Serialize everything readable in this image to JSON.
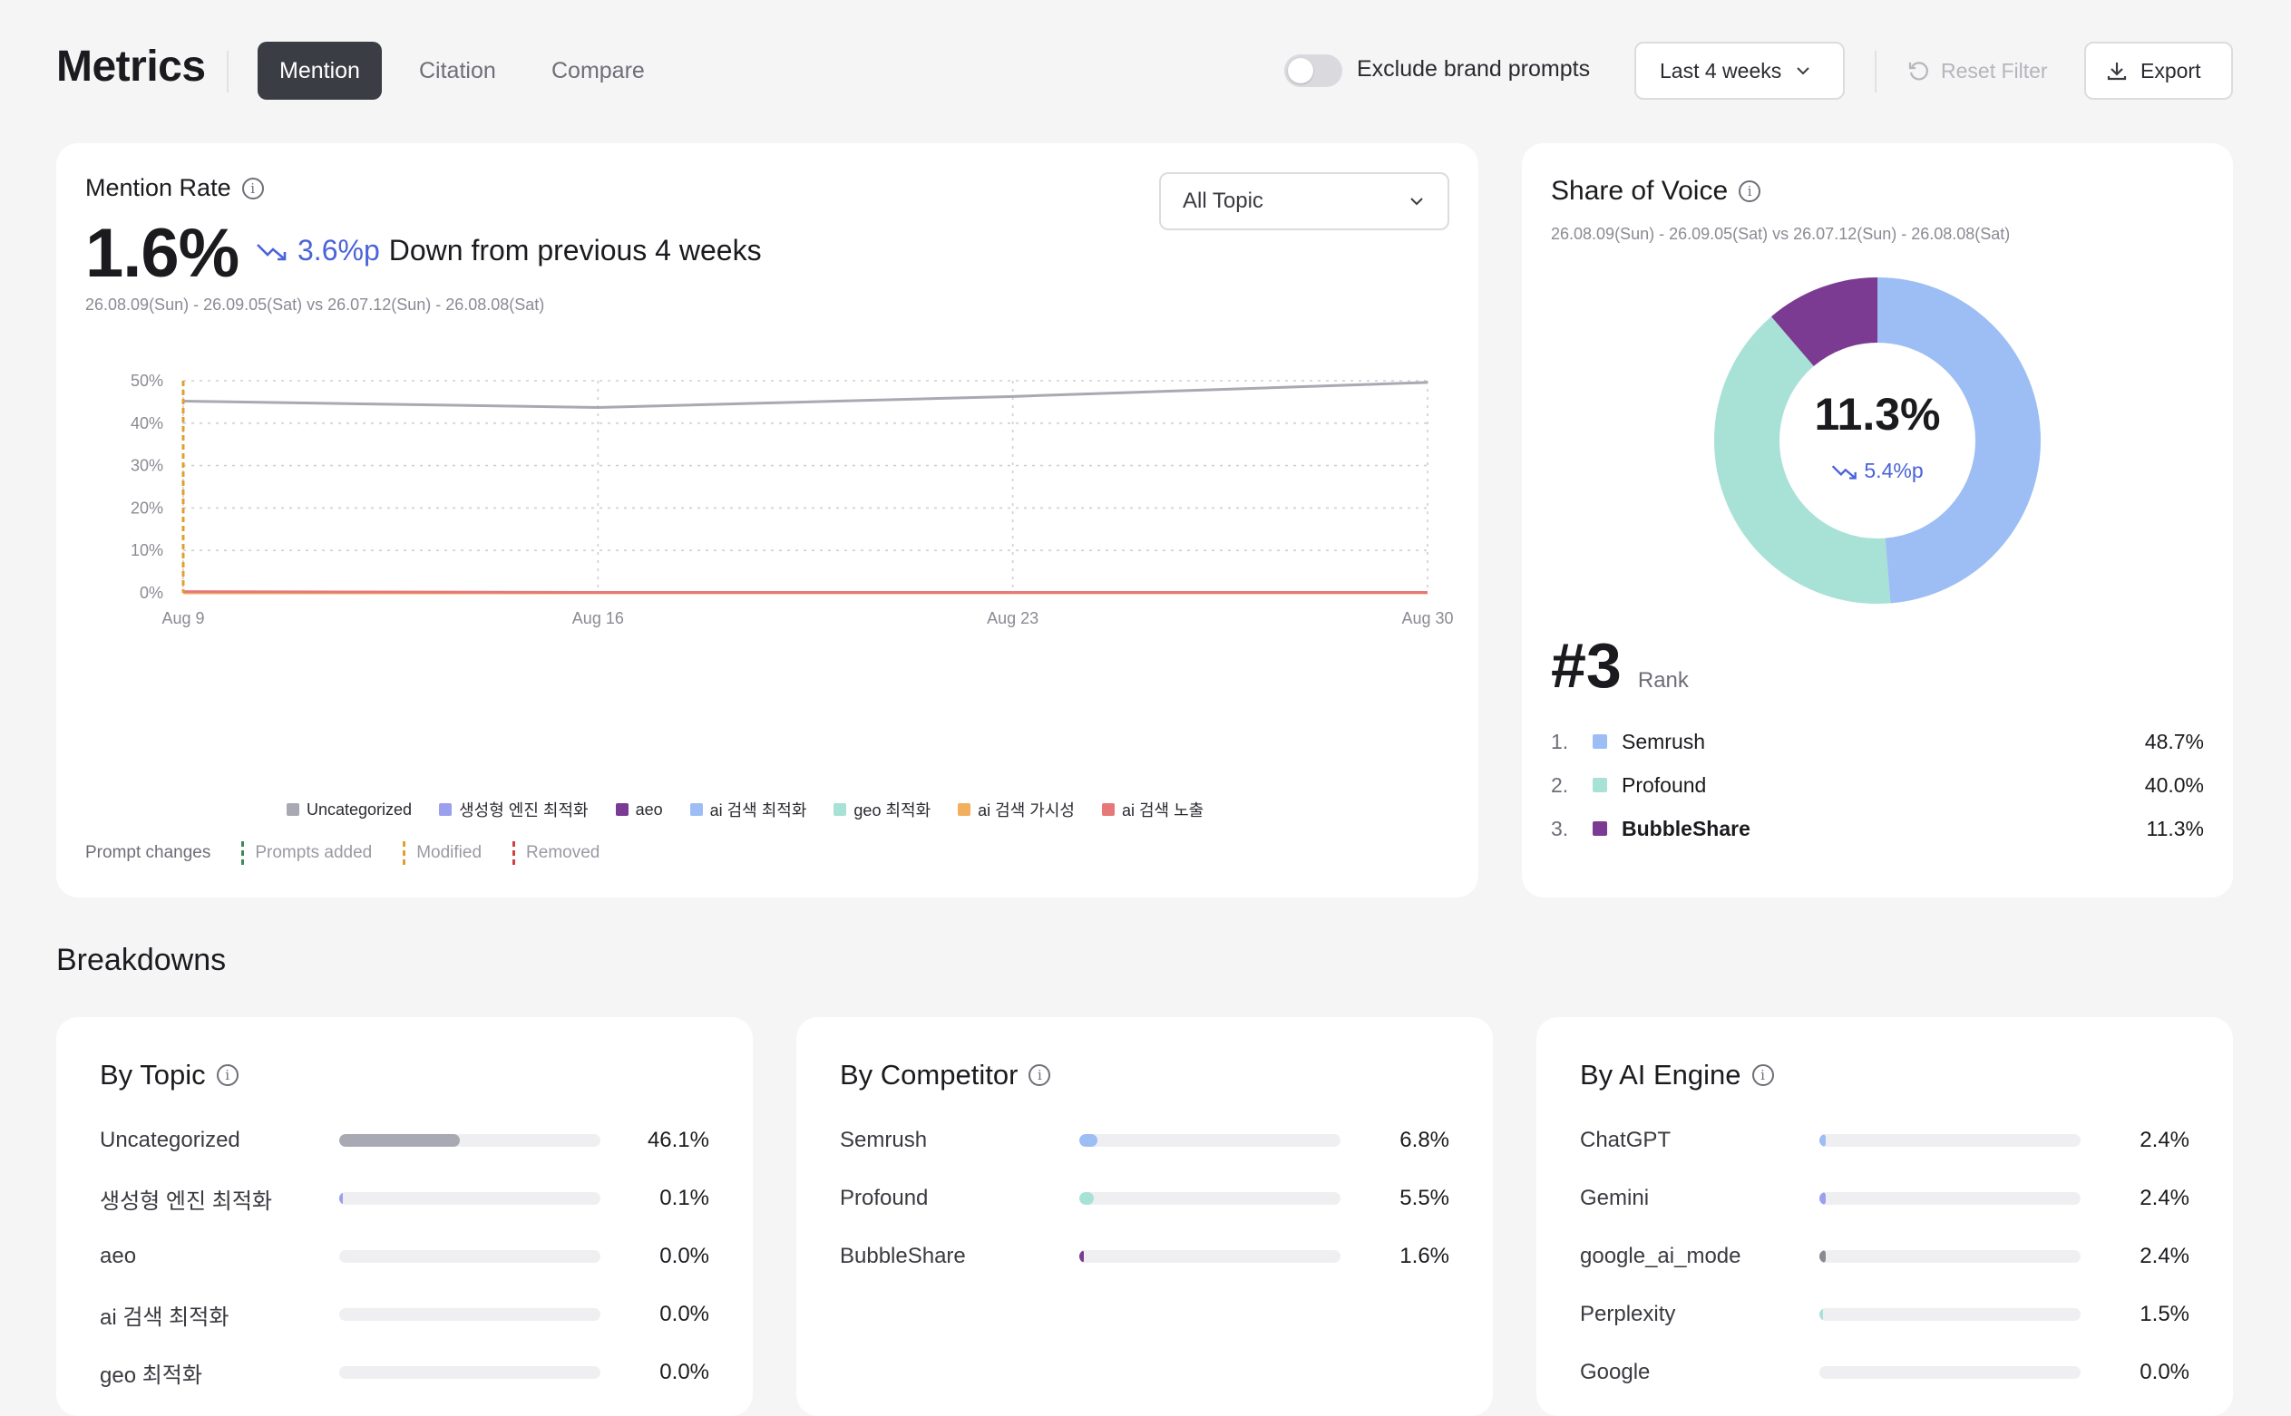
{
  "header": {
    "title": "Metrics",
    "tabs": [
      {
        "label": "Mention"
      },
      {
        "label": "Citation"
      },
      {
        "label": "Compare"
      }
    ],
    "active_tab": "Mention",
    "exclude_toggle_label": "Exclude brand prompts",
    "exclude_toggle_on": false,
    "period": "Last 4 weeks",
    "reset_label": "Reset Filter",
    "export_label": "Export"
  },
  "mention_rate": {
    "title": "Mention Rate",
    "value": "1.6%",
    "change": "3.6%p",
    "change_text": "Down from previous 4 weeks",
    "date_range": "26.08.09(Sun) - 26.09.05(Sat) vs 26.07.12(Sun) - 26.08.08(Sat)",
    "topic_filter": "All Topic",
    "prompt_changes_label": "Prompt changes",
    "prompt_changes": [
      {
        "label": "Prompts added",
        "color": "#3d8a5a"
      },
      {
        "label": "Modified",
        "color": "#e0a030"
      },
      {
        "label": "Removed",
        "color": "#d04040"
      }
    ]
  },
  "chart_data": {
    "type": "line",
    "x": [
      "Aug 9",
      "Aug 16",
      "Aug 23",
      "Aug 30"
    ],
    "ylim": [
      0,
      50
    ],
    "yticks": [
      "0%",
      "10%",
      "20%",
      "30%",
      "40%",
      "50%"
    ],
    "series": [
      {
        "name": "Uncategorized",
        "color": "#a9a9b4",
        "values": [
          45.2,
          43.7,
          46.3,
          49.6
        ]
      },
      {
        "name": "생성형 엔진 최적화",
        "color": "#9ba0ee",
        "values": [
          0.2,
          0.1,
          0.1,
          0.1
        ]
      },
      {
        "name": "aeo",
        "color": "#7b3b92",
        "values": [
          0.0,
          0.0,
          0.0,
          0.0
        ]
      },
      {
        "name": "ai 검색 최적화",
        "color": "#9dbdf5",
        "values": [
          0.0,
          0.0,
          0.0,
          0.0
        ]
      },
      {
        "name": "geo 최적화",
        "color": "#a8e2d6",
        "values": [
          0.0,
          0.0,
          0.0,
          0.0
        ]
      },
      {
        "name": "ai 검색 가시성",
        "color": "#f1b05e",
        "values": [
          0.0,
          0.0,
          0.0,
          0.0
        ]
      },
      {
        "name": "ai 검색 노출",
        "color": "#e77878",
        "values": [
          0.3,
          0.1,
          0.1,
          0.1
        ]
      }
    ],
    "markers": [
      {
        "x": "Aug 9",
        "type": "Modified",
        "color": "#e0a030"
      }
    ]
  },
  "share_of_voice": {
    "title": "Share of Voice",
    "date_range": "26.08.09(Sun) - 26.09.05(Sat) vs 26.07.12(Sun) - 26.08.08(Sat)",
    "center_value": "11.3%",
    "center_change": "5.4%p",
    "rank": "#3",
    "rank_label": "Rank",
    "entries": [
      {
        "idx": "1.",
        "name": "Semrush",
        "value": "48.7%",
        "pct": 48.7,
        "color": "#9dbdf5",
        "bold": false
      },
      {
        "idx": "2.",
        "name": "Profound",
        "value": "40.0%",
        "pct": 40.0,
        "color": "#a8e2d6",
        "bold": false
      },
      {
        "idx": "3.",
        "name": "BubbleShare",
        "value": "11.3%",
        "pct": 11.3,
        "color": "#7b3b92",
        "bold": true
      }
    ]
  },
  "breakdowns": {
    "title": "Breakdowns",
    "by_topic": {
      "title": "By Topic",
      "rows": [
        {
          "name": "Uncategorized",
          "value": "46.1%",
          "pct": 46.1,
          "color": "#a9a9b4"
        },
        {
          "name": "생성형 엔진 최적화",
          "value": "0.1%",
          "pct": 0.1,
          "color": "#9ba0ee"
        },
        {
          "name": "aeo",
          "value": "0.0%",
          "pct": 0.0,
          "color": "#7b3b92"
        },
        {
          "name": "ai 검색 최적화",
          "value": "0.0%",
          "pct": 0.0,
          "color": "#9dbdf5"
        },
        {
          "name": "geo 최적화",
          "value": "0.0%",
          "pct": 0.0,
          "color": "#a8e2d6"
        }
      ]
    },
    "by_competitor": {
      "title": "By Competitor",
      "rows": [
        {
          "name": "Semrush",
          "value": "6.8%",
          "pct": 6.8,
          "color": "#9dbdf5"
        },
        {
          "name": "Profound",
          "value": "5.5%",
          "pct": 5.5,
          "color": "#a8e2d6"
        },
        {
          "name": "BubbleShare",
          "value": "1.6%",
          "pct": 1.6,
          "color": "#7b3b92"
        }
      ]
    },
    "by_ai_engine": {
      "title": "By AI Engine",
      "rows": [
        {
          "name": "ChatGPT",
          "value": "2.4%",
          "pct": 2.4,
          "color": "#9dbdf5"
        },
        {
          "name": "Gemini",
          "value": "2.4%",
          "pct": 2.4,
          "color": "#9ba0ee"
        },
        {
          "name": "google_ai_mode",
          "value": "2.4%",
          "pct": 2.4,
          "color": "#8a8a93"
        },
        {
          "name": "Perplexity",
          "value": "1.5%",
          "pct": 1.5,
          "color": "#a8e2d6"
        },
        {
          "name": "Google",
          "value": "0.0%",
          "pct": 0.0,
          "color": "#c8c8d0"
        }
      ]
    }
  }
}
